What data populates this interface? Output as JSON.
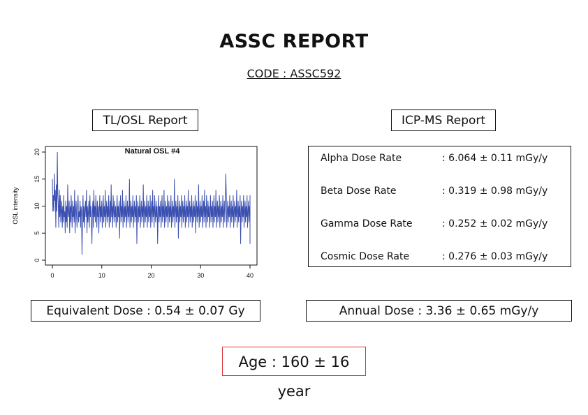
{
  "report": {
    "title": "ASSC REPORT",
    "code": "CODE : ASSC592"
  },
  "tl_osl": {
    "label": "TL/OSL Report",
    "equivalent_dose": "Equivalent Dose : 0.54 ± 0.07 Gy"
  },
  "icp_ms": {
    "label": "ICP-MS Report",
    "rows": [
      {
        "name": "Alpha Dose Rate",
        "value": ": 6.064 ± 0.11 mGy/y"
      },
      {
        "name": "Beta Dose Rate",
        "value": ": 0.319 ± 0.98 mGy/y"
      },
      {
        "name": "Gamma Dose Rate",
        "value": ": 0.252 ± 0.02 mGy/y"
      },
      {
        "name": "Cosmic Dose Rate",
        "value": ": 0.276 ± 0.03 mGy/y"
      }
    ],
    "annual_dose": "Annual Dose : 3.36 ± 0.65 mGy/y"
  },
  "age": "Age : 160 ± 16 year",
  "colors": {
    "series": "#3a4fb0",
    "age_border": "#d33333"
  },
  "chart_data": {
    "type": "line",
    "title": "Natural OSL #4",
    "xlabel": "",
    "ylabel": "OSL intensity",
    "xlim": [
      0,
      40
    ],
    "ylim": [
      0,
      20
    ],
    "x_ticks": [
      0,
      10,
      20,
      30,
      40
    ],
    "y_ticks": [
      0,
      5,
      10,
      15,
      20
    ],
    "x_step": 0.1,
    "series": [
      {
        "values": [
          15,
          9,
          12,
          9,
          16,
          11,
          13,
          6,
          14,
          9,
          20,
          12,
          10,
          6,
          13,
          8,
          12,
          7,
          9,
          11,
          6,
          10,
          7,
          12,
          8,
          9,
          5,
          11,
          7,
          10,
          6,
          14,
          9,
          8,
          11,
          5,
          10,
          7,
          12,
          9,
          6,
          11,
          8,
          10,
          7,
          13,
          5,
          9,
          11,
          8,
          6,
          10,
          12,
          7,
          9,
          8,
          11,
          6,
          10,
          9,
          1,
          8,
          12,
          7,
          10,
          6,
          9,
          11,
          8,
          13,
          5,
          10,
          7,
          9,
          11,
          6,
          12,
          8,
          10,
          7,
          3,
          9,
          11,
          6,
          13,
          8,
          10,
          7,
          12,
          9,
          6,
          11,
          8,
          10,
          5,
          9,
          12,
          7,
          10,
          8,
          11,
          6,
          9,
          12,
          7,
          10,
          8,
          13,
          6,
          9,
          11,
          7,
          10,
          8,
          12,
          6,
          9,
          11,
          7,
          14,
          8,
          10,
          6,
          12,
          9,
          7,
          11,
          8,
          10,
          6,
          9,
          12,
          7,
          10,
          8,
          11,
          4,
          9,
          12,
          7,
          10,
          8,
          13,
          6,
          9,
          11,
          7,
          10,
          8,
          12,
          6,
          9,
          11,
          7,
          10,
          8,
          15,
          6,
          9,
          11,
          7,
          10,
          8,
          12,
          6,
          9,
          11,
          7,
          10,
          8,
          12,
          3,
          9,
          11,
          7,
          10,
          8,
          12,
          6,
          9,
          11,
          7,
          10,
          8,
          14,
          6,
          9,
          11,
          7,
          10,
          8,
          12,
          6,
          9,
          11,
          7,
          10,
          8,
          12,
          6,
          9,
          11,
          7,
          13,
          8,
          10,
          6,
          12,
          9,
          7,
          11,
          8,
          10,
          3,
          9,
          12,
          7,
          10,
          8,
          11,
          6,
          9,
          12,
          7,
          10,
          8,
          13,
          6,
          9,
          11,
          7,
          10,
          8,
          12,
          6,
          9,
          11,
          7,
          10,
          8,
          12,
          6,
          9,
          11,
          7,
          10,
          8,
          15,
          6,
          9,
          11,
          7,
          10,
          8,
          12,
          4,
          9,
          11,
          7,
          10,
          8,
          12,
          6,
          9,
          11,
          7,
          10,
          8,
          12,
          6,
          9,
          11,
          7,
          10,
          8,
          13,
          6,
          9,
          11,
          7,
          10,
          8,
          12,
          6,
          9,
          11,
          7,
          10,
          8,
          12,
          5,
          9,
          11,
          7,
          10,
          8,
          14,
          6,
          9,
          11,
          7,
          10,
          8,
          12,
          6,
          9,
          11,
          7,
          13,
          8,
          10,
          6,
          12,
          9,
          7,
          11,
          8,
          10,
          6,
          9,
          12,
          7,
          10,
          8,
          11,
          6,
          9,
          12,
          7,
          10,
          8,
          13,
          6,
          9,
          11,
          7,
          10,
          8,
          12,
          6,
          9,
          11,
          7,
          10,
          8,
          12,
          6,
          9,
          11,
          7,
          10,
          16,
          12,
          6,
          9,
          11,
          7,
          10,
          8,
          12,
          6,
          9,
          11,
          7,
          10,
          8,
          12,
          6,
          9,
          11,
          7,
          10,
          8,
          13,
          6,
          9,
          11,
          7,
          10,
          8,
          12,
          3,
          9,
          11,
          7,
          10,
          8,
          12,
          6,
          9,
          11,
          7,
          10,
          8,
          12,
          6,
          9,
          11,
          7,
          10,
          8,
          12,
          6,
          9,
          11,
          7,
          10,
          8,
          4,
          9,
          11,
          7,
          10,
          8,
          12,
          6,
          9,
          11,
          7,
          10,
          8,
          12,
          6,
          9,
          11,
          7,
          10,
          8,
          12,
          9,
          3,
          8
        ]
      }
    ]
  }
}
